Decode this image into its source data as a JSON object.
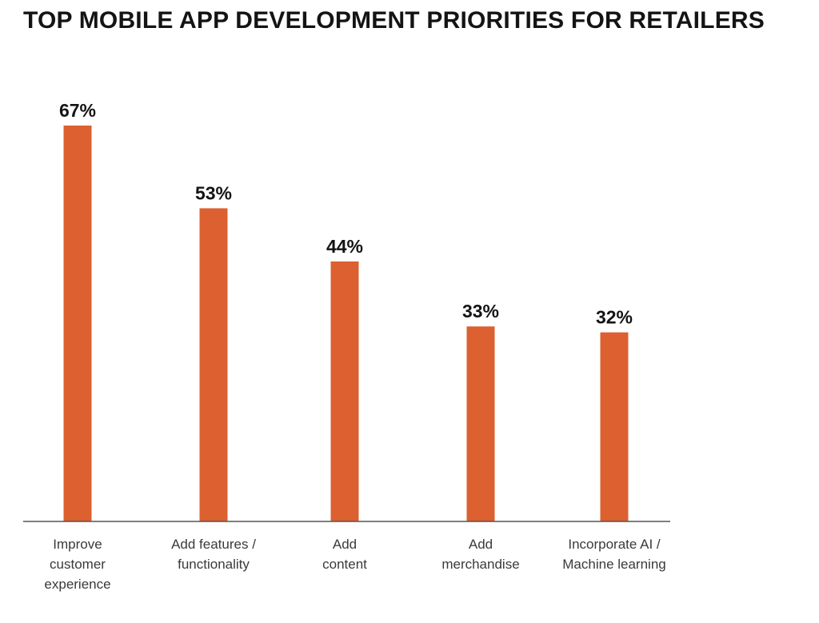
{
  "chart_data": {
    "type": "bar",
    "title": "TOP MOBILE APP DEVELOPMENT PRIORITIES FOR RETAILERS",
    "categories": [
      [
        "Improve",
        "customer",
        "experience"
      ],
      [
        "Add features /",
        "functionality"
      ],
      [
        "Add",
        "content"
      ],
      [
        "Add",
        "merchandise"
      ],
      [
        "Incorporate AI /",
        "Machine learning"
      ]
    ],
    "values": [
      67,
      53,
      44,
      33,
      32
    ],
    "value_labels": [
      "67%",
      "53%",
      "44%",
      "33%",
      "32%"
    ],
    "unit": "%",
    "bar_color": "#DC6030",
    "xlabel": "",
    "ylabel": "",
    "ylim": [
      0,
      67
    ],
    "grid": false,
    "legend": "none"
  }
}
